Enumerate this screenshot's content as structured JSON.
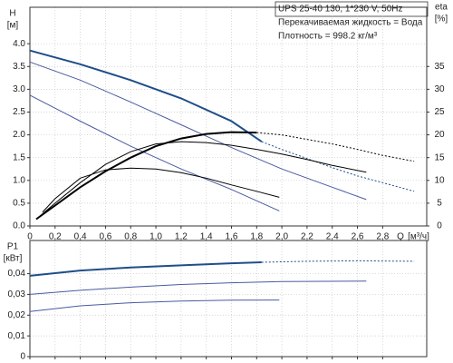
{
  "chart_data": [
    {
      "type": "line",
      "ylabel": "H",
      "yunit": "[м]",
      "y2label": "eta",
      "y2unit": "[%]",
      "xlabel": "Q",
      "xunit": "[м³/ч]",
      "annotations": [
        "UPS 25-40 130, 1*230 V, 50Hz",
        "Перекачиваемая жидкость = Вода",
        "Плотность = 998.2 кг/м³"
      ],
      "xlim": [
        0,
        3.15
      ],
      "ylim": [
        0,
        4.8
      ],
      "y2lim": [
        0,
        48
      ],
      "grid": true,
      "xticks": [
        0,
        {
          "value": 0.2,
          "label": "0,2"
        },
        {
          "value": 0.4,
          "label": "0,4"
        },
        {
          "value": 0.6,
          "label": "0,6"
        },
        {
          "value": 0.8,
          "label": "0,8"
        },
        {
          "value": 1.0,
          "label": "1,0"
        },
        {
          "value": 1.2,
          "label": "1,2"
        },
        {
          "value": 1.4,
          "label": "1,4"
        },
        {
          "value": 1.6,
          "label": "1,6"
        },
        {
          "value": 1.8,
          "label": "1,8"
        },
        {
          "value": 2.0,
          "label": "2,0"
        },
        {
          "value": 2.2,
          "label": "2,2"
        },
        {
          "value": 2.4,
          "label": "2,4"
        },
        {
          "value": 2.6,
          "label": "2,6"
        },
        {
          "value": 2.8,
          "label": "2,8"
        }
      ],
      "yticks": [
        {
          "value": 0,
          "label": "0.0"
        },
        {
          "value": 0.5,
          "label": "0.5"
        },
        {
          "value": 1.0,
          "label": "1.0"
        },
        {
          "value": 1.5,
          "label": "1.5"
        },
        {
          "value": 2.0,
          "label": "2.0"
        },
        {
          "value": 2.5,
          "label": "2.5"
        },
        {
          "value": 3.0,
          "label": "3.0"
        },
        {
          "value": 3.5,
          "label": "3.5"
        },
        {
          "value": 4.0,
          "label": "4.0"
        }
      ],
      "y2ticks": [
        0,
        5,
        10,
        15,
        20,
        25,
        30,
        35
      ],
      "series": [
        {
          "color": "#1f4e89",
          "width": 2,
          "dash": false,
          "x": [
            0,
            0.4,
            0.8,
            1.2,
            1.6,
            1.84
          ],
          "values": [
            3.85,
            3.55,
            3.2,
            2.8,
            2.3,
            1.85
          ]
        },
        {
          "color": "#1f4e89",
          "width": 1,
          "dash": true,
          "x": [
            1.84,
            2.0,
            2.2,
            2.4,
            2.6,
            2.8,
            3.05
          ],
          "values": [
            1.85,
            1.68,
            1.48,
            1.28,
            1.1,
            0.95,
            0.76
          ]
        },
        {
          "color": "#4a5aa0",
          "width": 1,
          "dash": false,
          "x": [
            0,
            0.4,
            0.8,
            1.2,
            1.6,
            2.0,
            2.4,
            2.67
          ],
          "values": [
            3.6,
            3.2,
            2.72,
            2.22,
            1.72,
            1.25,
            0.85,
            0.58
          ]
        },
        {
          "color": "#4a5aa0",
          "width": 1,
          "dash": false,
          "x": [
            0,
            0.4,
            0.8,
            1.2,
            1.6,
            1.98
          ],
          "values": [
            2.87,
            2.3,
            1.75,
            1.25,
            0.8,
            0.33
          ]
        },
        {
          "color": "#000000",
          "width": 2,
          "dash": false,
          "axis": "y2",
          "x": [
            0.05,
            0.2,
            0.4,
            0.6,
            0.8,
            1.0,
            1.2,
            1.4,
            1.6,
            1.8
          ],
          "values": [
            1.5,
            4.5,
            8.5,
            12,
            15,
            17.5,
            19.2,
            20.2,
            20.6,
            20.5
          ]
        },
        {
          "color": "#000000",
          "width": 1,
          "dash": true,
          "axis": "y2",
          "x": [
            1.8,
            2.0,
            2.2,
            2.4,
            2.6,
            2.8,
            3.05
          ],
          "values": [
            20.5,
            20,
            19,
            18,
            16.8,
            15.5,
            14.2
          ]
        },
        {
          "color": "#000000",
          "width": 1,
          "dash": false,
          "axis": "y2",
          "x": [
            0.05,
            0.2,
            0.4,
            0.6,
            0.8,
            1.0,
            1.2,
            1.4,
            1.6,
            1.8,
            2.0,
            2.2,
            2.4,
            2.67
          ],
          "values": [
            1.5,
            5,
            9.5,
            13.5,
            16.3,
            18,
            18.5,
            18.3,
            17.7,
            16.8,
            15.8,
            14.6,
            13.3,
            11.8
          ]
        },
        {
          "color": "#000000",
          "width": 1,
          "dash": false,
          "axis": "y2",
          "x": [
            0.1,
            0.2,
            0.4,
            0.6,
            0.8,
            1.0,
            1.2,
            1.4,
            1.6,
            1.8,
            1.98
          ],
          "values": [
            3,
            6,
            10.5,
            12.3,
            12.7,
            12.5,
            11.7,
            10.5,
            9,
            7.6,
            6.3
          ]
        }
      ]
    },
    {
      "type": "line",
      "ylabel": "P1",
      "yunit": "[кВт]",
      "xlim": [
        0,
        3.15
      ],
      "ylim": [
        0,
        0.056
      ],
      "grid": true,
      "xtick_labels": false,
      "xticks": [
        0,
        0.2,
        0.4,
        0.6,
        0.8,
        1.0,
        1.2,
        1.4,
        1.6,
        1.8,
        2.0,
        2.2,
        2.4,
        2.6,
        2.8
      ],
      "yticks": [
        0,
        {
          "value": 0.01,
          "label": "0,01"
        },
        {
          "value": 0.02,
          "label": "0,02"
        },
        {
          "value": 0.03,
          "label": "0,03"
        },
        {
          "value": 0.04,
          "label": "0,04"
        }
      ],
      "series": [
        {
          "color": "#1f4e89",
          "width": 2,
          "dash": false,
          "x": [
            0,
            0.4,
            0.8,
            1.2,
            1.6,
            1.84
          ],
          "values": [
            0.039,
            0.0415,
            0.043,
            0.044,
            0.045,
            0.0455
          ]
        },
        {
          "color": "#1f4e89",
          "width": 1,
          "dash": true,
          "x": [
            1.84,
            2.2,
            2.6,
            3.05
          ],
          "values": [
            0.0455,
            0.046,
            0.0462,
            0.046
          ]
        },
        {
          "color": "#4a5aa0",
          "width": 1,
          "dash": false,
          "x": [
            0,
            0.4,
            0.8,
            1.2,
            1.6,
            2.0,
            2.67
          ],
          "values": [
            0.03,
            0.032,
            0.0335,
            0.0348,
            0.0356,
            0.0362,
            0.0364
          ]
        },
        {
          "color": "#4a5aa0",
          "width": 1,
          "dash": false,
          "x": [
            0,
            0.4,
            0.8,
            1.2,
            1.6,
            1.98
          ],
          "values": [
            0.0218,
            0.0245,
            0.026,
            0.0268,
            0.0272,
            0.0273
          ]
        }
      ]
    }
  ]
}
